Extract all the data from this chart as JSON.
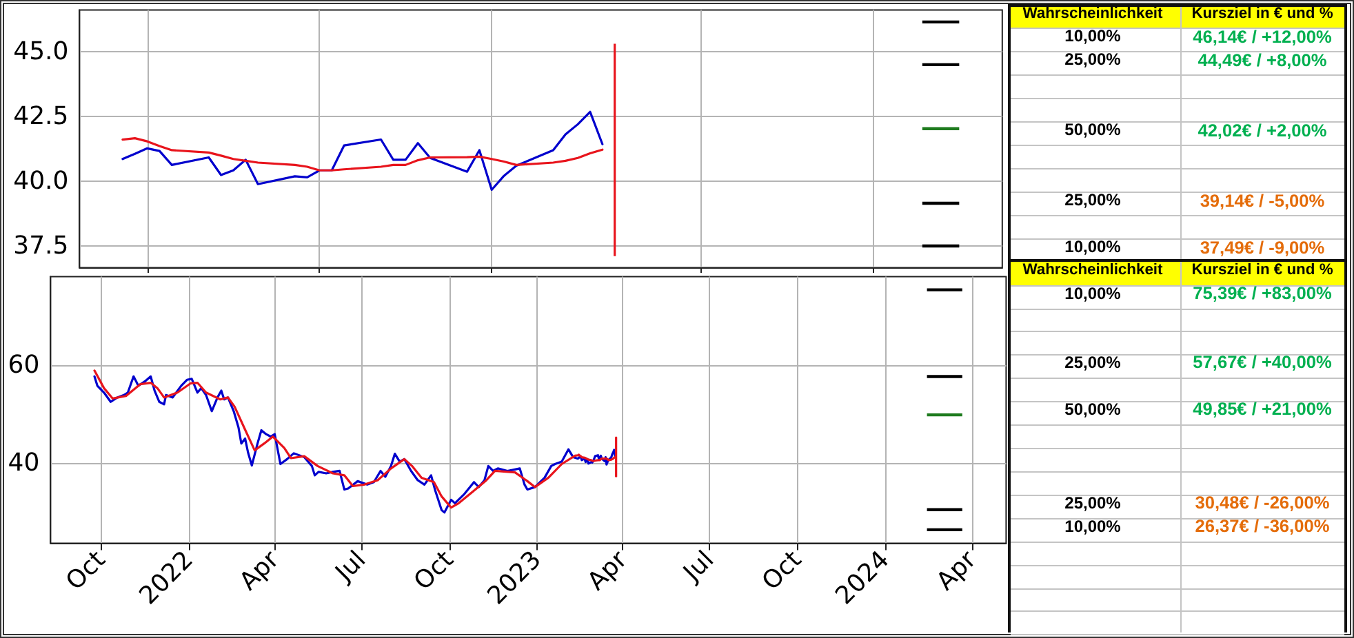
{
  "chart_data": [
    {
      "type": "line",
      "tick_labels": "y",
      "grid": true,
      "categories": [
        null,
        null,
        null,
        null,
        null,
        null,
        null,
        null,
        null,
        null,
        null,
        null,
        null,
        null,
        null,
        null,
        null,
        null,
        null,
        null,
        null,
        null,
        null,
        null,
        null,
        null,
        null,
        null,
        null,
        null,
        null,
        null,
        null,
        null,
        null,
        null,
        null,
        null,
        null,
        null,
        null,
        null,
        null,
        null,
        null,
        null,
        null,
        null,
        null,
        null,
        null,
        null,
        null,
        null,
        null,
        null,
        null,
        null,
        null,
        null,
        null,
        null,
        null,
        null,
        null,
        null,
        null,
        null,
        null,
        null,
        null,
        null,
        null,
        null,
        null
      ],
      "ylim": [
        36.65,
        46.6
      ],
      "yticks": [
        37.5,
        {
          "value": 40,
          "label": "40.0"
        },
        42.5,
        {
          "value": 45,
          "label": "45.0"
        }
      ],
      "annotations": [
        "Wahrscheinlichkeit",
        "Kursziel in € und %",
        "46,14€ / +12,00%",
        "44,49€ / +8,00%",
        "42,02€ / +2,00%",
        "39,14€ / -5,00%",
        "37,49€ / -9,00%"
      ],
      "series": [
        {
          "color": "#0000cd",
          "values": [
            null,
            null,
            null,
            40.85,
            41.05,
            41.26,
            41.16,
            40.62,
            null,
            null,
            40.91,
            40.23,
            40.41,
            40.82,
            39.88,
            null,
            null,
            40.18,
            40.14,
            40.41,
            40.41,
            41.37,
            null,
            null,
            41.6,
            40.82,
            40.82,
            41.46,
            40.89,
            null,
            null,
            40.36,
            41.19,
            39.66,
            40.2,
            40.59,
            null,
            null,
            41.19,
            41.8,
            42.19,
            42.67,
            41.42,
            null,
            null,
            null,
            null,
            null,
            null,
            null,
            null,
            null,
            null,
            null,
            null,
            null,
            null,
            null,
            null,
            null,
            null,
            null,
            null,
            null,
            null,
            null,
            null,
            null,
            null,
            null,
            null,
            null,
            null,
            null,
            null
          ]
        },
        {
          "color": "#e8141c",
          "values": [
            null,
            null,
            null,
            41.6,
            41.65,
            41.53,
            41.35,
            41.19,
            null,
            null,
            41.1,
            40.98,
            40.85,
            40.78,
            40.71,
            null,
            null,
            40.62,
            40.55,
            40.41,
            40.41,
            40.45,
            null,
            null,
            40.55,
            40.62,
            40.62,
            40.8,
            40.91,
            null,
            null,
            40.92,
            40.94,
            40.85,
            40.75,
            40.62,
            null,
            null,
            40.71,
            40.78,
            40.89,
            41.07,
            41.21,
            null,
            null,
            null,
            null,
            null,
            null,
            null,
            null,
            null,
            null,
            null,
            null,
            null,
            null,
            null,
            null,
            null,
            null,
            null,
            null,
            null,
            null,
            null,
            null,
            null,
            null,
            null,
            null,
            null,
            null,
            null,
            null
          ]
        },
        {
          "type": "bar",
          "color": "#e8141c",
          "base": [
            null,
            null,
            null,
            null,
            null,
            null,
            null,
            null,
            null,
            null,
            null,
            null,
            null,
            null,
            null,
            null,
            null,
            null,
            null,
            null,
            null,
            null,
            null,
            null,
            null,
            null,
            null,
            null,
            null,
            null,
            null,
            null,
            null,
            null,
            null,
            null,
            null,
            null,
            null,
            null,
            null,
            null,
            null,
            37.1,
            null,
            null,
            null,
            null,
            null,
            null,
            null,
            null,
            null,
            null,
            null,
            null,
            null,
            null,
            null,
            null,
            null,
            null,
            null,
            null,
            null,
            null,
            null,
            null,
            null,
            null,
            null,
            null,
            null,
            null,
            null
          ],
          "values": [
            null,
            null,
            null,
            null,
            null,
            null,
            null,
            null,
            null,
            null,
            null,
            null,
            null,
            null,
            null,
            null,
            null,
            null,
            null,
            null,
            null,
            null,
            null,
            null,
            null,
            null,
            null,
            null,
            null,
            null,
            null,
            null,
            null,
            null,
            null,
            null,
            null,
            null,
            null,
            null,
            null,
            null,
            null,
            8.2,
            null,
            null,
            null,
            null,
            null,
            null,
            null,
            null,
            null,
            null,
            null,
            null,
            null,
            null,
            null,
            null,
            null,
            null,
            null,
            null,
            null,
            null,
            null,
            null,
            null,
            null,
            null,
            null,
            null,
            null,
            null
          ]
        },
        {
          "name": "10,00%",
          "color": "#000000",
          "values": [
            null,
            null,
            null,
            null,
            null,
            null,
            null,
            null,
            null,
            null,
            null,
            null,
            null,
            null,
            null,
            null,
            null,
            null,
            null,
            null,
            null,
            null,
            null,
            null,
            null,
            null,
            null,
            null,
            null,
            null,
            null,
            null,
            null,
            null,
            null,
            null,
            null,
            null,
            null,
            null,
            null,
            null,
            null,
            null,
            null,
            null,
            null,
            null,
            null,
            null,
            null,
            null,
            null,
            null,
            null,
            null,
            null,
            null,
            null,
            null,
            null,
            null,
            null,
            null,
            null,
            null,
            null,
            null,
            46.14,
            46.14,
            46.14,
            46.14,
            null,
            null,
            null
          ]
        },
        {
          "name": "25,00%",
          "color": "#000000",
          "values": [
            null,
            null,
            null,
            null,
            null,
            null,
            null,
            null,
            null,
            null,
            null,
            null,
            null,
            null,
            null,
            null,
            null,
            null,
            null,
            null,
            null,
            null,
            null,
            null,
            null,
            null,
            null,
            null,
            null,
            null,
            null,
            null,
            null,
            null,
            null,
            null,
            null,
            null,
            null,
            null,
            null,
            null,
            null,
            null,
            null,
            null,
            null,
            null,
            null,
            null,
            null,
            null,
            null,
            null,
            null,
            null,
            null,
            null,
            null,
            null,
            null,
            null,
            null,
            null,
            null,
            null,
            null,
            null,
            44.49,
            44.49,
            44.49,
            44.49,
            null,
            null,
            null
          ]
        },
        {
          "name": "50,00%",
          "color": "#1e7b1e",
          "values": [
            null,
            null,
            null,
            null,
            null,
            null,
            null,
            null,
            null,
            null,
            null,
            null,
            null,
            null,
            null,
            null,
            null,
            null,
            null,
            null,
            null,
            null,
            null,
            null,
            null,
            null,
            null,
            null,
            null,
            null,
            null,
            null,
            null,
            null,
            null,
            null,
            null,
            null,
            null,
            null,
            null,
            null,
            null,
            null,
            null,
            null,
            null,
            null,
            null,
            null,
            null,
            null,
            null,
            null,
            null,
            null,
            null,
            null,
            null,
            null,
            null,
            null,
            null,
            null,
            null,
            null,
            null,
            null,
            42.02,
            42.02,
            42.02,
            42.02,
            null,
            null,
            null
          ]
        },
        {
          "name": "25,00%",
          "color": "#000000",
          "values": [
            null,
            null,
            null,
            null,
            null,
            null,
            null,
            null,
            null,
            null,
            null,
            null,
            null,
            null,
            null,
            null,
            null,
            null,
            null,
            null,
            null,
            null,
            null,
            null,
            null,
            null,
            null,
            null,
            null,
            null,
            null,
            null,
            null,
            null,
            null,
            null,
            null,
            null,
            null,
            null,
            null,
            null,
            null,
            null,
            null,
            null,
            null,
            null,
            null,
            null,
            null,
            null,
            null,
            null,
            null,
            null,
            null,
            null,
            null,
            null,
            null,
            null,
            null,
            null,
            null,
            null,
            null,
            null,
            39.14,
            39.14,
            39.14,
            39.14,
            null,
            null,
            null
          ]
        },
        {
          "name": "10,00%",
          "color": "#000000",
          "values": [
            null,
            null,
            null,
            null,
            null,
            null,
            null,
            null,
            null,
            null,
            null,
            null,
            null,
            null,
            null,
            null,
            null,
            null,
            null,
            null,
            null,
            null,
            null,
            null,
            null,
            null,
            null,
            null,
            null,
            null,
            null,
            null,
            null,
            null,
            null,
            null,
            null,
            null,
            null,
            null,
            null,
            null,
            null,
            null,
            null,
            null,
            null,
            null,
            null,
            null,
            null,
            null,
            null,
            null,
            null,
            null,
            null,
            null,
            null,
            null,
            null,
            null,
            null,
            null,
            null,
            null,
            null,
            null,
            37.49,
            37.49,
            37.49,
            37.49,
            null,
            null,
            null
          ]
        }
      ]
    },
    {
      "type": "line",
      "grid": true,
      "xlim": [
        "2021-08-09",
        "2024-05-07"
      ],
      "xticks": [
        {
          "value": "2021-10-01",
          "label": "Oct"
        },
        {
          "value": "2022-01-01",
          "label": "2022"
        },
        {
          "value": "2022-04-01",
          "label": "Apr"
        },
        {
          "value": "2022-07-01",
          "label": "Jul"
        },
        {
          "value": "2022-10-01",
          "label": "Oct"
        },
        {
          "value": "2023-01-01",
          "label": "2023"
        },
        {
          "value": "2023-04-01",
          "label": "Apr"
        },
        {
          "value": "2023-07-01",
          "label": "Jul"
        },
        {
          "value": "2023-10-01",
          "label": "Oct"
        },
        {
          "value": "2024-01-01",
          "label": "2024"
        },
        {
          "value": "2024-04-01",
          "label": "Apr"
        }
      ],
      "ylim": [
        23.6,
        78.1
      ],
      "yticks": [
        40,
        60
      ],
      "annotations": [
        "Wahrscheinlichkeit",
        "Kursziel in € und %",
        "75,39€ / +83,00%",
        "57,67€ / +40,00%",
        "49,85€ / +21,00%",
        "30,48€ / -26,00%",
        "26,37€ / -36,00%"
      ],
      "series": [
        {
          "color": "#0000cd",
          "x": [
            "2021-09-24",
            "2021-09-27",
            "2021-10-04",
            "2021-10-11",
            "2021-10-18",
            "2021-10-25",
            "2021-10-29",
            "2021-11-04",
            "2021-11-09",
            "2021-11-16",
            "2021-11-22",
            "2021-11-26",
            "2021-12-01",
            "2021-12-06",
            "2021-12-08",
            "2021-12-15",
            "2021-12-24",
            "2021-12-30",
            "2022-01-04",
            "2022-01-10",
            "2022-01-14",
            "2022-01-19",
            "2022-01-25",
            "2022-01-31",
            "2022-02-04",
            "2022-02-07",
            "2022-02-11",
            "2022-02-17",
            "2022-02-22",
            "2022-02-25",
            "2022-03-01",
            "2022-03-04",
            "2022-03-08",
            "2022-03-14",
            "2022-03-18",
            "2022-03-23",
            "2022-03-28",
            "2022-04-01",
            "2022-04-07",
            "2022-04-14",
            "2022-04-21",
            "2022-05-02",
            "2022-05-10",
            "2022-05-13",
            "2022-05-17",
            "2022-05-25",
            "2022-06-01",
            "2022-06-08",
            "2022-06-13",
            "2022-06-17",
            "2022-06-27",
            "2022-07-07",
            "2022-07-14",
            "2022-07-21",
            "2022-07-26",
            "2022-08-01",
            "2022-08-05",
            "2022-08-10",
            "2022-08-15",
            "2022-08-22",
            "2022-08-29",
            "2022-09-05",
            "2022-09-12",
            "2022-09-16",
            "2022-09-23",
            "2022-09-26",
            "2022-10-03",
            "2022-10-07",
            "2022-10-17",
            "2022-10-27",
            "2022-11-01",
            "2022-11-07",
            "2022-11-11",
            "2022-11-16",
            "2022-11-21",
            "2022-12-01",
            "2022-12-09",
            "2022-12-14",
            "2022-12-19",
            "2022-12-22",
            "2022-12-30",
            "2023-01-09",
            "2023-01-16",
            "2023-01-20",
            "2023-01-27",
            "2023-02-03",
            "2023-02-08",
            "2023-02-13",
            "2023-02-14",
            "2023-02-15",
            "2023-02-16",
            "2023-02-17",
            "2023-02-20",
            "2023-02-21",
            "2023-02-22",
            "2023-02-23",
            "2023-02-24",
            "2023-02-27",
            "2023-02-28",
            "2023-03-01",
            "2023-03-02",
            "2023-03-03",
            "2023-03-06",
            "2023-03-07",
            "2023-03-08",
            "2023-03-09",
            "2023-03-10",
            "2023-03-13",
            "2023-03-14",
            "2023-03-15",
            "2023-03-16",
            "2023-03-17",
            "2023-03-20",
            "2023-03-21",
            "2023-03-22",
            "2023-03-23",
            "2023-03-24"
          ],
          "values": [
            57.7,
            55.8,
            54.4,
            52.5,
            53.4,
            53.9,
            54.4,
            57.7,
            55.8,
            56.7,
            57.7,
            54.8,
            52.5,
            52.0,
            53.9,
            53.4,
            55.8,
            57.0,
            57.2,
            54.4,
            55.3,
            53.9,
            50.6,
            53.4,
            54.8,
            53.0,
            53.4,
            50.6,
            47.3,
            44.0,
            45.0,
            42.2,
            39.5,
            44.0,
            46.7,
            45.9,
            45.4,
            45.9,
            39.8,
            40.8,
            42.0,
            41.2,
            39.4,
            37.5,
            38.2,
            37.9,
            38.2,
            38.4,
            34.6,
            34.8,
            36.3,
            35.6,
            36.1,
            38.4,
            37.2,
            39.4,
            41.9,
            40.3,
            40.8,
            38.4,
            36.5,
            35.6,
            37.5,
            34.6,
            30.4,
            29.9,
            32.5,
            31.8,
            33.7,
            36.1,
            35.1,
            36.5,
            39.4,
            38.4,
            38.9,
            38.4,
            38.7,
            38.9,
            35.6,
            34.6,
            35.1,
            37.0,
            39.4,
            39.8,
            40.3,
            42.8,
            41.2,
            40.9,
            41.1,
            41.3,
            41.2,
            40.6,
            40.9,
            40.2,
            40.4,
            40.8,
            39.9,
            40.2,
            40.1,
            40.4,
            40.4,
            41.4,
            41.6,
            40.8,
            40.8,
            41.5,
            40.9,
            40.4,
            41.2,
            39.7,
            40.2,
            40.6,
            41.2,
            41.8,
            42.2,
            42.7,
            41.4
          ]
        },
        {
          "color": "#e8141c",
          "x": [
            "2021-09-24",
            "2021-10-04",
            "2021-10-13",
            "2021-10-27",
            "2021-11-11",
            "2021-11-22",
            "2021-11-29",
            "2021-12-06",
            "2021-12-20",
            "2022-01-03",
            "2022-01-10",
            "2022-01-19",
            "2022-02-03",
            "2022-02-11",
            "2022-02-18",
            "2022-03-01",
            "2022-03-11",
            "2022-03-21",
            "2022-03-30",
            "2022-04-11",
            "2022-04-18",
            "2022-05-02",
            "2022-05-16",
            "2022-06-01",
            "2022-06-13",
            "2022-06-22",
            "2022-07-04",
            "2022-07-18",
            "2022-08-01",
            "2022-08-15",
            "2022-08-23",
            "2022-09-02",
            "2022-09-15",
            "2022-09-23",
            "2022-10-03",
            "2022-10-11",
            "2022-10-26",
            "2022-11-09",
            "2022-11-18",
            "2022-12-09",
            "2022-12-22",
            "2022-12-30",
            "2023-01-13",
            "2023-01-27",
            "2023-02-10",
            "2023-02-13",
            "2023-02-14",
            "2023-02-15",
            "2023-02-16",
            "2023-02-17",
            "2023-02-20",
            "2023-02-21",
            "2023-02-22",
            "2023-02-23",
            "2023-02-24",
            "2023-02-27",
            "2023-02-28",
            "2023-03-01",
            "2023-03-02",
            "2023-03-03",
            "2023-03-06",
            "2023-03-07",
            "2023-03-08",
            "2023-03-09",
            "2023-03-10",
            "2023-03-13",
            "2023-03-14",
            "2023-03-15",
            "2023-03-16",
            "2023-03-17",
            "2023-03-20",
            "2023-03-21",
            "2023-03-22",
            "2023-03-23",
            "2023-03-24"
          ],
          "values": [
            58.9,
            55.3,
            53.2,
            53.7,
            56.1,
            56.4,
            55.3,
            53.4,
            54.4,
            56.3,
            56.4,
            54.4,
            53.0,
            53.4,
            51.5,
            46.8,
            42.6,
            44.0,
            45.4,
            43.1,
            41.0,
            41.4,
            39.4,
            37.9,
            37.5,
            35.3,
            35.6,
            36.5,
            38.9,
            40.8,
            39.4,
            37.0,
            36.1,
            33.2,
            30.9,
            31.8,
            34.2,
            36.5,
            38.4,
            38.1,
            36.3,
            35.1,
            37.0,
            39.8,
            41.5,
            41.6,
            41.7,
            41.5,
            41.4,
            41.2,
            41.1,
            41.0,
            40.9,
            40.8,
            40.7,
            40.6,
            40.6,
            40.4,
            40.4,
            40.5,
            40.6,
            40.6,
            40.6,
            40.8,
            40.9,
            40.9,
            40.9,
            40.9,
            40.8,
            40.6,
            40.7,
            40.8,
            40.9,
            41.1,
            41.2
          ]
        },
        {
          "color": "#e8141c",
          "x": [
            "2023-03-25",
            "2023-03-25"
          ],
          "values": [
            37.3,
            45.2
          ]
        },
        {
          "name": "10,00%",
          "color": "#000000",
          "x": [
            "2024-02-14",
            "2024-03-22"
          ],
          "values": [
            75.39,
            75.39
          ]
        },
        {
          "name": "25,00%",
          "color": "#000000",
          "x": [
            "2024-02-14",
            "2024-03-22"
          ],
          "values": [
            57.67,
            57.67
          ]
        },
        {
          "name": "50,00%",
          "color": "#1e7b1e",
          "x": [
            "2024-02-14",
            "2024-03-22"
          ],
          "values": [
            49.85,
            49.85
          ]
        },
        {
          "name": "25,00%",
          "color": "#000000",
          "x": [
            "2024-02-14",
            "2024-03-22"
          ],
          "values": [
            30.48,
            30.48
          ]
        },
        {
          "name": "10,00%",
          "color": "#000000",
          "x": [
            "2024-02-14",
            "2024-03-22"
          ],
          "values": [
            26.37,
            26.37
          ]
        }
      ]
    }
  ]
}
